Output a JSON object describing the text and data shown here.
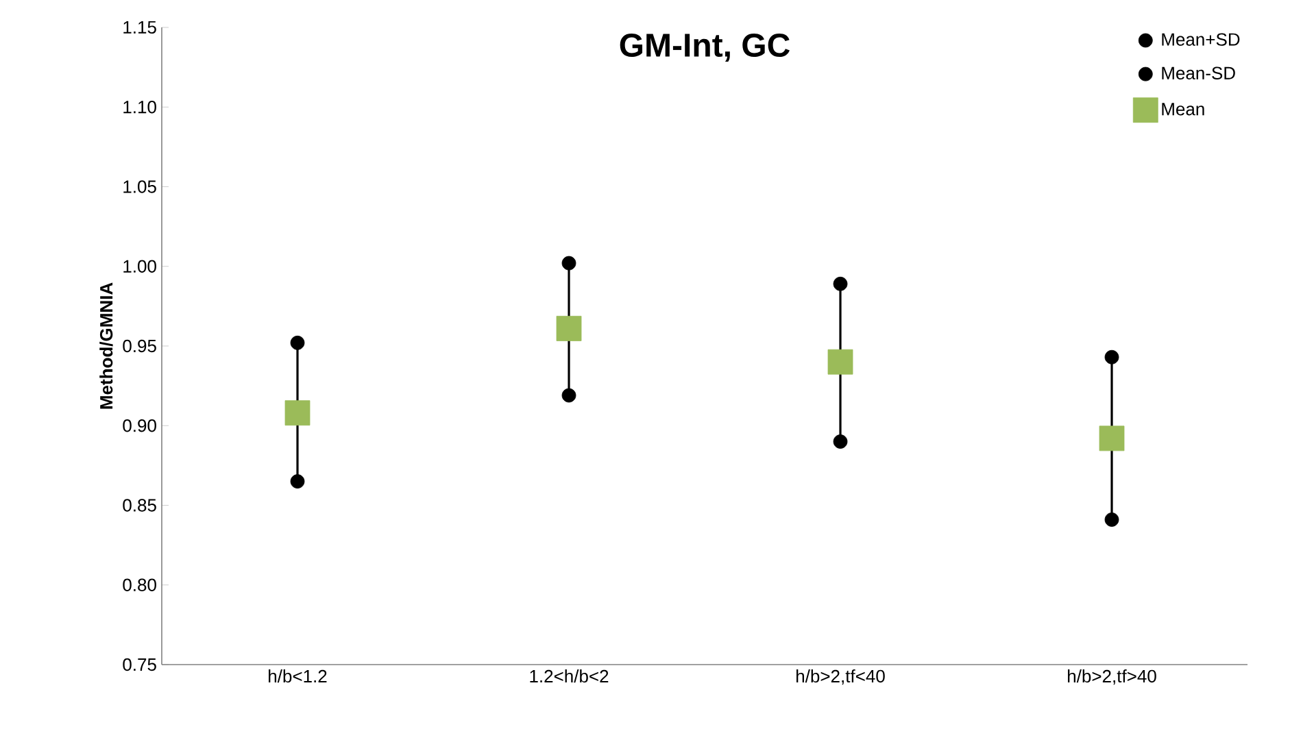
{
  "chart_data": {
    "type": "scatter",
    "title": "GM-Int, GC",
    "ylabel": "Method/GMNIA",
    "categories": [
      "h/b<1.2",
      "1.2<h/b<2",
      "h/b>2,tf<40",
      "h/b>2,tf>40"
    ],
    "series": [
      {
        "name": "Mean+SD",
        "color": "#000000",
        "marker": "circle",
        "values": [
          0.952,
          1.002,
          0.989,
          0.943
        ]
      },
      {
        "name": "Mean-SD",
        "color": "#000000",
        "marker": "circle",
        "values": [
          0.865,
          0.919,
          0.89,
          0.841
        ]
      },
      {
        "name": "Mean",
        "color": "#9bbb59",
        "marker": "square",
        "values": [
          0.908,
          0.961,
          0.94,
          0.892
        ],
        "errors": [
          [
            0.04,
            0.04
          ],
          [
            0.04,
            0.04
          ],
          [
            0.05,
            0.05
          ],
          [
            0.05,
            0.05
          ]
        ]
      }
    ],
    "ylim": [
      0.75,
      1.15
    ],
    "yticks": [
      {
        "value": 0.75,
        "label": "0.75"
      },
      {
        "value": 0.8,
        "label": "0.80"
      },
      {
        "value": 0.85,
        "label": "0.85"
      },
      {
        "value": 0.9,
        "label": "0.90"
      },
      {
        "value": 0.95,
        "label": "0.95"
      },
      {
        "value": 1.0,
        "label": "1.00"
      },
      {
        "value": 1.05,
        "label": "1.05"
      },
      {
        "value": 1.1,
        "label": "1.10"
      },
      {
        "value": 1.15,
        "label": "1.15"
      }
    ],
    "grid": false,
    "legend": "top right"
  }
}
